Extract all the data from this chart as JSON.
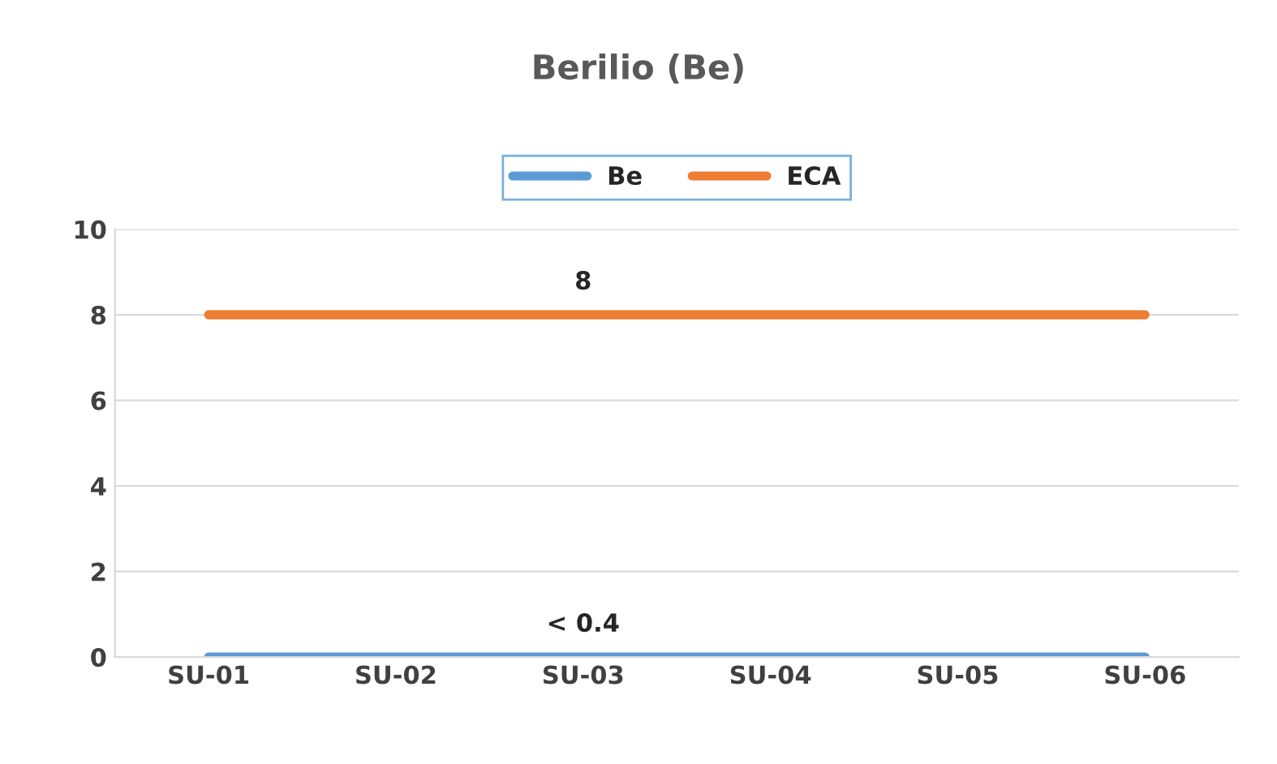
{
  "chart_data": {
    "type": "line",
    "title": "Berilio (Be)",
    "categories": [
      "SU-01",
      "SU-02",
      "SU-03",
      "SU-04",
      "SU-05",
      "SU-06"
    ],
    "series": [
      {
        "name": "Be",
        "color": "#5b9bd5",
        "values": [
          0,
          0,
          0,
          0,
          0,
          0
        ],
        "value_labels": [
          null,
          null,
          "< 0.4",
          null,
          null,
          null
        ]
      },
      {
        "name": "ECA",
        "color": "#ed7d31",
        "values": [
          8,
          8,
          8,
          8,
          8,
          8
        ],
        "value_labels": [
          null,
          null,
          "8",
          null,
          null,
          null
        ]
      }
    ],
    "ylim": [
      0,
      10
    ],
    "yticks": [
      0,
      2,
      4,
      6,
      8,
      10
    ],
    "grid": "y",
    "legend": "top",
    "marker": "none",
    "line_style": "solid"
  }
}
